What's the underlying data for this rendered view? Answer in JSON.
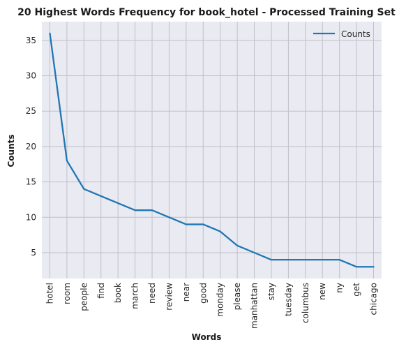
{
  "chart_data": {
    "type": "line",
    "title": "20 Highest Words Frequency for book_hotel - Processed Training Set",
    "xlabel": "Words",
    "ylabel": "Counts",
    "categories": [
      "hotel",
      "room",
      "people",
      "find",
      "book",
      "march",
      "need",
      "review",
      "near",
      "good",
      "monday",
      "please",
      "manhattan",
      "stay",
      "tuesday",
      "columbus",
      "new",
      "ny",
      "get",
      "chicago"
    ],
    "series": [
      {
        "name": "Counts",
        "values": [
          36,
          18,
          14,
          13,
          12,
          11,
          11,
          10,
          9,
          9,
          8,
          6,
          5,
          4,
          4,
          4,
          4,
          4,
          3,
          3
        ]
      }
    ],
    "yticks": [
      5,
      10,
      15,
      20,
      25,
      30,
      35
    ],
    "ylim": [
      1.35,
      37.65
    ],
    "grid": true,
    "legend_position": "top-right",
    "colors": {
      "line": "#1f77b4",
      "background": "#eaeaf2",
      "grid": "#c0c0c8"
    }
  }
}
